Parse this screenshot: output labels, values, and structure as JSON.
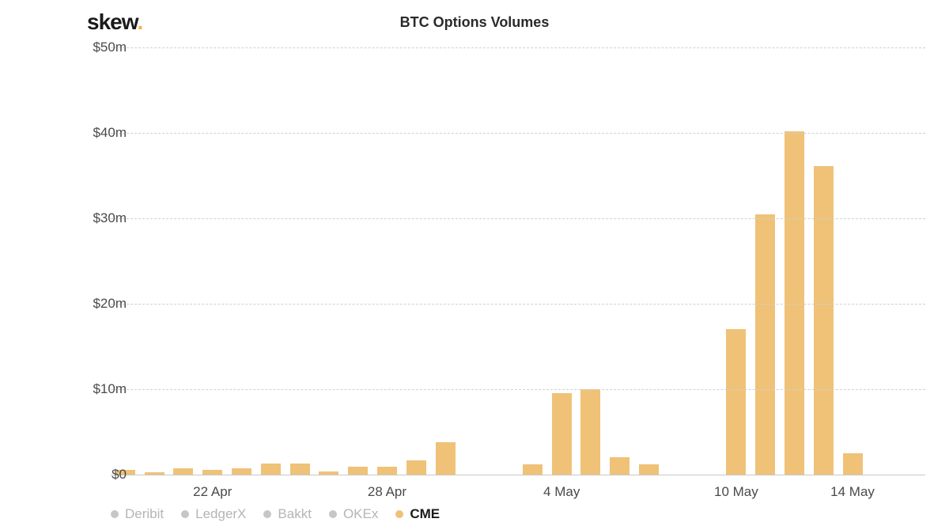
{
  "logo": {
    "text": "skew",
    "dot": "."
  },
  "chart": {
    "type": "bar",
    "title": "BTC Options Volumes",
    "title_fontsize": 18,
    "title_fontweight": 700,
    "title_color": "#2a2a2a",
    "background_color": "#ffffff",
    "grid_color": "#d0d0d0",
    "grid_dash": "dashed",
    "baseline_color": "#c8c8c8",
    "axis_label_color": "#4a4a4a",
    "axis_label_fontsize": 17,
    "ylim": [
      0,
      50
    ],
    "ytick_step": 10,
    "yticks": [
      {
        "value": 0,
        "label": "$0"
      },
      {
        "value": 10,
        "label": "$10m"
      },
      {
        "value": 20,
        "label": "$20m"
      },
      {
        "value": 30,
        "label": "$30m"
      },
      {
        "value": 40,
        "label": "$40m"
      },
      {
        "value": 50,
        "label": "$50m"
      }
    ],
    "xticks": [
      {
        "index": 3,
        "label": "22 Apr"
      },
      {
        "index": 9,
        "label": "28 Apr"
      },
      {
        "index": 15,
        "label": "4 May"
      },
      {
        "index": 21,
        "label": "10 May"
      },
      {
        "index": 25,
        "label": "14 May"
      }
    ],
    "bar_color": "#efc278",
    "bar_width_ratio": 0.68,
    "n_slots": 28,
    "series_name": "CME",
    "data": [
      {
        "i": 0,
        "value": 0.6
      },
      {
        "i": 1,
        "value": 0.25
      },
      {
        "i": 2,
        "value": 0.7
      },
      {
        "i": 3,
        "value": 0.6
      },
      {
        "i": 4,
        "value": 0.7
      },
      {
        "i": 5,
        "value": 1.3
      },
      {
        "i": 6,
        "value": 1.3
      },
      {
        "i": 7,
        "value": 0.4
      },
      {
        "i": 8,
        "value": 0.9
      },
      {
        "i": 9,
        "value": 0.9
      },
      {
        "i": 10,
        "value": 1.7
      },
      {
        "i": 11,
        "value": 3.8
      },
      {
        "i": 14,
        "value": 1.2
      },
      {
        "i": 15,
        "value": 9.5
      },
      {
        "i": 16,
        "value": 10.0
      },
      {
        "i": 17,
        "value": 2.0
      },
      {
        "i": 18,
        "value": 1.2
      },
      {
        "i": 21,
        "value": 17.0
      },
      {
        "i": 22,
        "value": 30.5
      },
      {
        "i": 23,
        "value": 40.2
      },
      {
        "i": 24,
        "value": 36.1
      },
      {
        "i": 25,
        "value": 2.5
      }
    ]
  },
  "legend": {
    "inactive_color": "#c6c6c6",
    "inactive_text_color": "#b5b5b5",
    "active_text_color": "#1a1a1a",
    "items": [
      {
        "label": "Deribit",
        "dot_color": "#c6c6c6",
        "active": false
      },
      {
        "label": "LedgerX",
        "dot_color": "#c6c6c6",
        "active": false
      },
      {
        "label": "Bakkt",
        "dot_color": "#c6c6c6",
        "active": false
      },
      {
        "label": "OKEx",
        "dot_color": "#c6c6c6",
        "active": false
      },
      {
        "label": "CME",
        "dot_color": "#efc278",
        "active": true
      }
    ]
  }
}
